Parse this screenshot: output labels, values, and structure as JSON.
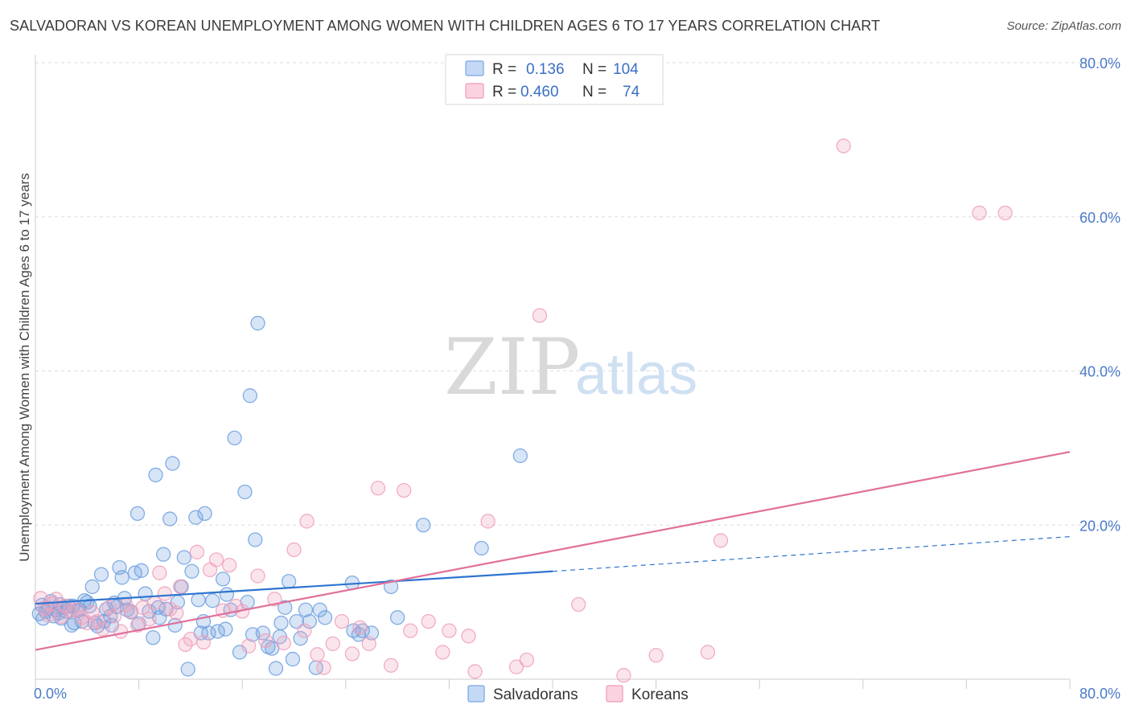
{
  "title": "SALVADORAN VS KOREAN UNEMPLOYMENT AMONG WOMEN WITH CHILDREN AGES 6 TO 17 YEARS CORRELATION CHART",
  "source": "Source: ZipAtlas.com",
  "watermark": {
    "zip": "ZIP",
    "atlas": "atlas"
  },
  "colors": {
    "salvadoran": "#6fa0e0",
    "salvadoran_line": "#2f74d0",
    "korean": "#f0a0bb",
    "korean_line": "#e0709a",
    "tick_text": "#4a7ac8",
    "grid": "#dddddd"
  },
  "legend": {
    "rows": [
      {
        "r_label": "R =",
        "r_value": "0.136",
        "n_label": "N =",
        "n_value": "104"
      },
      {
        "r_label": "R =",
        "r_value": "0.460",
        "n_label": "N =",
        "n_value": "74"
      }
    ]
  },
  "bottom_legend": [
    "Salvadorans",
    "Koreans"
  ],
  "chart_data": {
    "type": "scatter",
    "title": "SALVADORAN VS KOREAN UNEMPLOYMENT AMONG WOMEN WITH CHILDREN AGES 6 TO 17 YEARS CORRELATION CHART",
    "xlabel": "",
    "ylabel": "Unemployment Among Women with Children Ages 6 to 17 years",
    "xlim": [
      0,
      80
    ],
    "ylim": [
      0,
      80
    ],
    "x_tick_labels": [
      "0.0%",
      "80.0%"
    ],
    "y_tick_labels": [
      "20.0%",
      "40.0%",
      "60.0%",
      "80.0%"
    ],
    "y_ticks": [
      20,
      40,
      60,
      80
    ],
    "grid": true,
    "legend_position": "top-center",
    "series": [
      {
        "name": "Salvadorans",
        "r": 0.136,
        "n": 104,
        "trend": {
          "x0": 0,
          "y0": 9.8,
          "x1": 40,
          "y1": 14.0,
          "dashed_to_x": 80,
          "dashed_to_y": 18.5
        },
        "points": [
          [
            0.3,
            8.5
          ],
          [
            0.5,
            9.6
          ],
          [
            0.6,
            7.9
          ],
          [
            0.8,
            8.8
          ],
          [
            1.0,
            9.2
          ],
          [
            1.2,
            10.1
          ],
          [
            1.4,
            8.2
          ],
          [
            1.6,
            9.0
          ],
          [
            1.8,
            8.6
          ],
          [
            2.0,
            7.9
          ],
          [
            2.2,
            9.3
          ],
          [
            2.4,
            8.8
          ],
          [
            2.6,
            9.5
          ],
          [
            2.8,
            7.0
          ],
          [
            3.0,
            7.3
          ],
          [
            3.2,
            8.9
          ],
          [
            3.4,
            9.0
          ],
          [
            3.6,
            7.5
          ],
          [
            3.8,
            10.2
          ],
          [
            4.0,
            10.0
          ],
          [
            4.2,
            9.5
          ],
          [
            4.4,
            12.0
          ],
          [
            4.6,
            7.3
          ],
          [
            4.8,
            6.9
          ],
          [
            5.1,
            13.6
          ],
          [
            5.3,
            7.5
          ],
          [
            5.5,
            9.1
          ],
          [
            5.8,
            8.2
          ],
          [
            6.1,
            9.9
          ],
          [
            6.3,
            9.4
          ],
          [
            6.5,
            14.5
          ],
          [
            6.7,
            13.2
          ],
          [
            6.9,
            10.5
          ],
          [
            7.1,
            9.0
          ],
          [
            7.4,
            8.7
          ],
          [
            7.7,
            13.8
          ],
          [
            7.9,
            21.5
          ],
          [
            8.0,
            7.2
          ],
          [
            8.2,
            14.1
          ],
          [
            8.5,
            11.1
          ],
          [
            8.8,
            8.8
          ],
          [
            9.1,
            5.4
          ],
          [
            9.3,
            26.5
          ],
          [
            9.5,
            9.3
          ],
          [
            9.9,
            16.2
          ],
          [
            10.1,
            9.1
          ],
          [
            10.4,
            20.8
          ],
          [
            10.6,
            28.0
          ],
          [
            10.8,
            7.0
          ],
          [
            11.0,
            10.0
          ],
          [
            11.3,
            12.0
          ],
          [
            11.5,
            15.8
          ],
          [
            11.8,
            1.3
          ],
          [
            12.1,
            14.0
          ],
          [
            12.4,
            21.0
          ],
          [
            12.6,
            10.3
          ],
          [
            12.8,
            6.0
          ],
          [
            13.1,
            21.5
          ],
          [
            13.4,
            6.0
          ],
          [
            13.7,
            10.2
          ],
          [
            14.1,
            6.2
          ],
          [
            14.5,
            13.0
          ],
          [
            14.8,
            11.0
          ],
          [
            15.1,
            9.0
          ],
          [
            15.4,
            31.3
          ],
          [
            15.8,
            3.5
          ],
          [
            16.2,
            24.3
          ],
          [
            16.4,
            10.0
          ],
          [
            16.6,
            36.8
          ],
          [
            16.8,
            5.8
          ],
          [
            17.0,
            18.1
          ],
          [
            17.2,
            46.2
          ],
          [
            17.6,
            6.0
          ],
          [
            18.0,
            4.2
          ],
          [
            18.3,
            4.0
          ],
          [
            18.6,
            1.4
          ],
          [
            19.0,
            7.3
          ],
          [
            19.3,
            9.3
          ],
          [
            19.6,
            12.7
          ],
          [
            19.9,
            2.6
          ],
          [
            20.2,
            7.5
          ],
          [
            20.5,
            5.3
          ],
          [
            20.9,
            9.0
          ],
          [
            21.2,
            7.5
          ],
          [
            22.0,
            9.0
          ],
          [
            22.4,
            8.0
          ],
          [
            24.5,
            12.5
          ],
          [
            24.6,
            6.3
          ],
          [
            25.0,
            5.8
          ],
          [
            25.3,
            6.3
          ],
          [
            26.0,
            6.0
          ],
          [
            27.5,
            12.0
          ],
          [
            28.0,
            8.0
          ],
          [
            30.0,
            20.0
          ],
          [
            34.5,
            17.0
          ],
          [
            37.5,
            29.0
          ],
          [
            2.9,
            9.5
          ],
          [
            5.9,
            7.0
          ],
          [
            9.6,
            8.0
          ],
          [
            13.0,
            7.5
          ],
          [
            14.7,
            6.5
          ],
          [
            18.9,
            5.5
          ],
          [
            21.7,
            1.5
          ],
          [
            1.9,
            9.7
          ]
        ]
      },
      {
        "name": "Koreans",
        "r": 0.46,
        "n": 74,
        "trend": {
          "x0": 0,
          "y0": 3.8,
          "x1": 80,
          "y1": 29.5
        },
        "points": [
          [
            0.4,
            10.5
          ],
          [
            0.7,
            9.2
          ],
          [
            1.0,
            8.3
          ],
          [
            1.3,
            9.8
          ],
          [
            1.6,
            10.4
          ],
          [
            2.0,
            8.1
          ],
          [
            2.3,
            9.5
          ],
          [
            2.7,
            8.9
          ],
          [
            3.2,
            9.0
          ],
          [
            3.6,
            8.0
          ],
          [
            4.0,
            7.3
          ],
          [
            4.4,
            8.7
          ],
          [
            4.8,
            7.5
          ],
          [
            5.2,
            6.5
          ],
          [
            5.7,
            9.3
          ],
          [
            6.1,
            8.2
          ],
          [
            6.6,
            6.2
          ],
          [
            7.0,
            9.6
          ],
          [
            7.4,
            8.8
          ],
          [
            7.9,
            7.0
          ],
          [
            8.3,
            9.3
          ],
          [
            8.8,
            7.8
          ],
          [
            9.2,
            9.9
          ],
          [
            9.6,
            13.8
          ],
          [
            10.0,
            11.1
          ],
          [
            10.4,
            9.1
          ],
          [
            10.9,
            8.6
          ],
          [
            11.2,
            12.0
          ],
          [
            11.6,
            4.5
          ],
          [
            12.0,
            5.2
          ],
          [
            12.5,
            16.5
          ],
          [
            13.0,
            4.8
          ],
          [
            13.5,
            14.2
          ],
          [
            14.0,
            15.5
          ],
          [
            14.5,
            8.9
          ],
          [
            15.0,
            14.8
          ],
          [
            15.5,
            9.5
          ],
          [
            16.0,
            8.8
          ],
          [
            16.5,
            4.3
          ],
          [
            17.2,
            13.4
          ],
          [
            17.8,
            5.0
          ],
          [
            18.5,
            10.4
          ],
          [
            19.2,
            4.7
          ],
          [
            20.0,
            16.8
          ],
          [
            20.8,
            6.3
          ],
          [
            21.0,
            20.5
          ],
          [
            21.8,
            3.2
          ],
          [
            22.3,
            1.5
          ],
          [
            23.0,
            4.6
          ],
          [
            23.7,
            7.5
          ],
          [
            24.5,
            3.3
          ],
          [
            25.1,
            6.7
          ],
          [
            25.8,
            4.6
          ],
          [
            26.5,
            24.8
          ],
          [
            27.5,
            1.8
          ],
          [
            28.5,
            24.5
          ],
          [
            29.0,
            6.3
          ],
          [
            30.4,
            7.5
          ],
          [
            31.5,
            3.5
          ],
          [
            32.0,
            6.3
          ],
          [
            33.5,
            5.6
          ],
          [
            34.0,
            1.0
          ],
          [
            35.0,
            20.5
          ],
          [
            37.2,
            1.6
          ],
          [
            38.0,
            2.5
          ],
          [
            39.0,
            47.2
          ],
          [
            42.0,
            9.7
          ],
          [
            45.5,
            0.5
          ],
          [
            48.0,
            3.1
          ],
          [
            52.0,
            3.5
          ],
          [
            53.0,
            18.0
          ],
          [
            62.5,
            69.2
          ],
          [
            73.0,
            60.5
          ],
          [
            75.0,
            60.5
          ]
        ]
      }
    ]
  }
}
